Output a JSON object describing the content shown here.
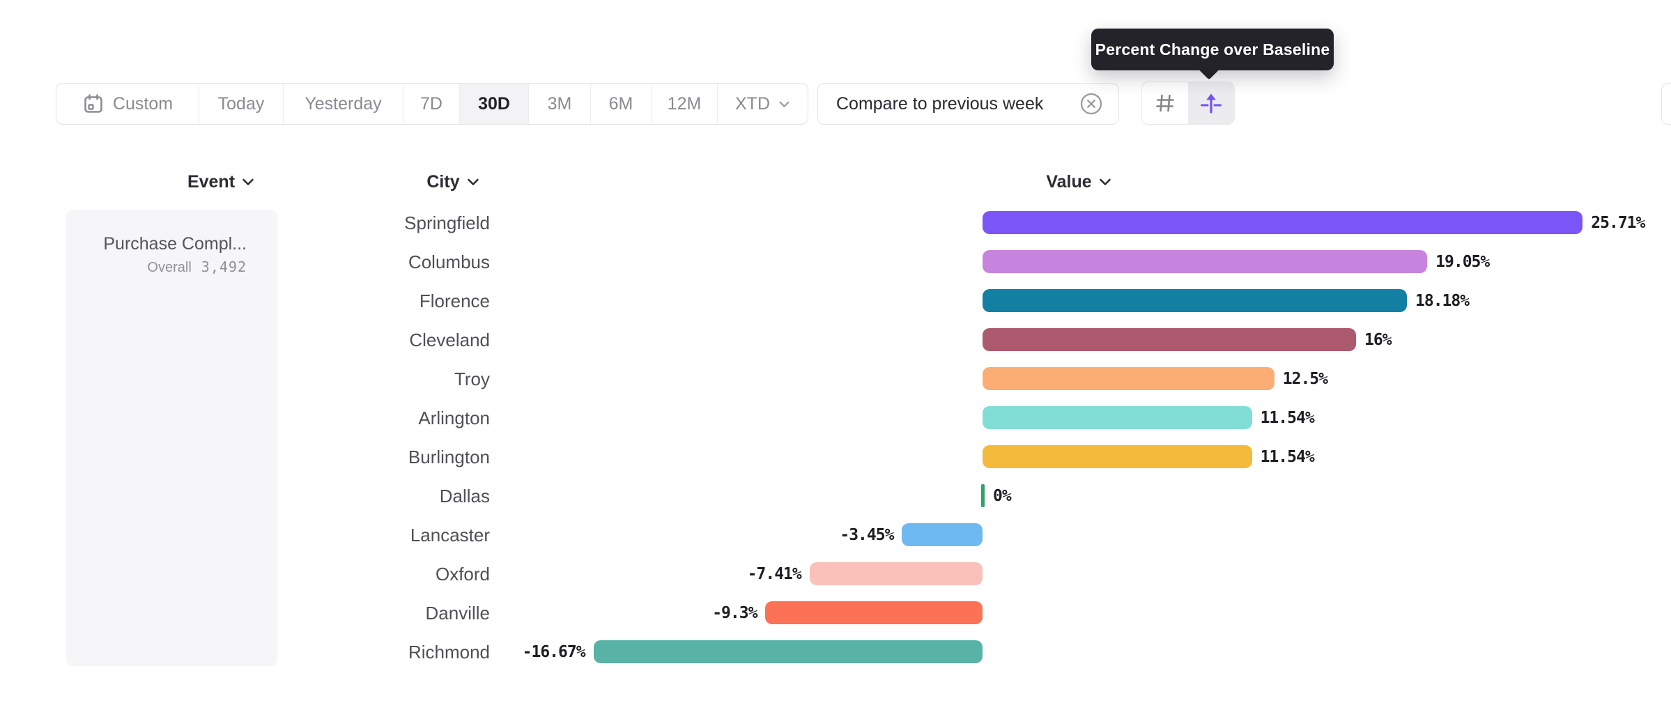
{
  "tooltip": {
    "text": "Percent Change over Baseline"
  },
  "toolbar": {
    "date_ranges": [
      {
        "label": "Custom",
        "icon": "calendar-icon",
        "selected": false
      },
      {
        "label": "Today",
        "selected": false
      },
      {
        "label": "Yesterday",
        "selected": false
      },
      {
        "label": "7D",
        "selected": false
      },
      {
        "label": "30D",
        "selected": true
      },
      {
        "label": "3M",
        "selected": false
      },
      {
        "label": "6M",
        "selected": false
      },
      {
        "label": "12M",
        "selected": false
      },
      {
        "label": "XTD",
        "has_dropdown": true,
        "selected": false
      }
    ],
    "compare": {
      "label": "Compare to previous week",
      "close_icon": "circle-x-icon"
    },
    "view_toggle": [
      {
        "name": "number-format",
        "icon": "hash-icon",
        "selected": false
      },
      {
        "name": "percent-change-format",
        "icon": "percent-change-icon",
        "selected": true
      }
    ]
  },
  "columns": {
    "event": "Event",
    "city": "City",
    "value": "Value"
  },
  "event_panel": {
    "event_name": "Purchase Compl...",
    "overall_label": "Overall",
    "overall_value": "3,492"
  },
  "chart_data": {
    "type": "bar",
    "orientation": "horizontal",
    "title": "Percent Change over Baseline",
    "value_unit": "%",
    "baseline": 0,
    "xlim": [
      -16.67,
      25.71
    ],
    "grid": false,
    "categories": [
      "Springfield",
      "Columbus",
      "Florence",
      "Cleveland",
      "Troy",
      "Arlington",
      "Burlington",
      "Dallas",
      "Lancaster",
      "Oxford",
      "Danville",
      "Richmond"
    ],
    "values": [
      25.71,
      19.05,
      18.18,
      16,
      12.5,
      11.54,
      11.54,
      0,
      -3.45,
      -7.41,
      -9.3,
      -16.67
    ],
    "labels": [
      "25.71%",
      "19.05%",
      "18.18%",
      "16%",
      "12.5%",
      "11.54%",
      "11.54%",
      "0%",
      "-3.45%",
      "-7.41%",
      "-9.3%",
      "-16.67%"
    ],
    "colors": [
      "#7A55F7",
      "#C784DE",
      "#137FA3",
      "#AD5A6E",
      "#FCAD73",
      "#81DED7",
      "#F4BA3B",
      "#2EA36B",
      "#6FB9F1",
      "#FAC1BB",
      "#FC7257",
      "#58B3A6"
    ]
  },
  "theme": {
    "accent_purple": "#7352F0",
    "tooltip_bg": "#232329",
    "border": "#E5E5E8",
    "selected_bg": "#F3F3F5",
    "muted_text": "#8A8A93",
    "dark_text": "#26262D",
    "panel_bg": "#F6F6F8",
    "zero_tick_green": "#2EA36B"
  }
}
